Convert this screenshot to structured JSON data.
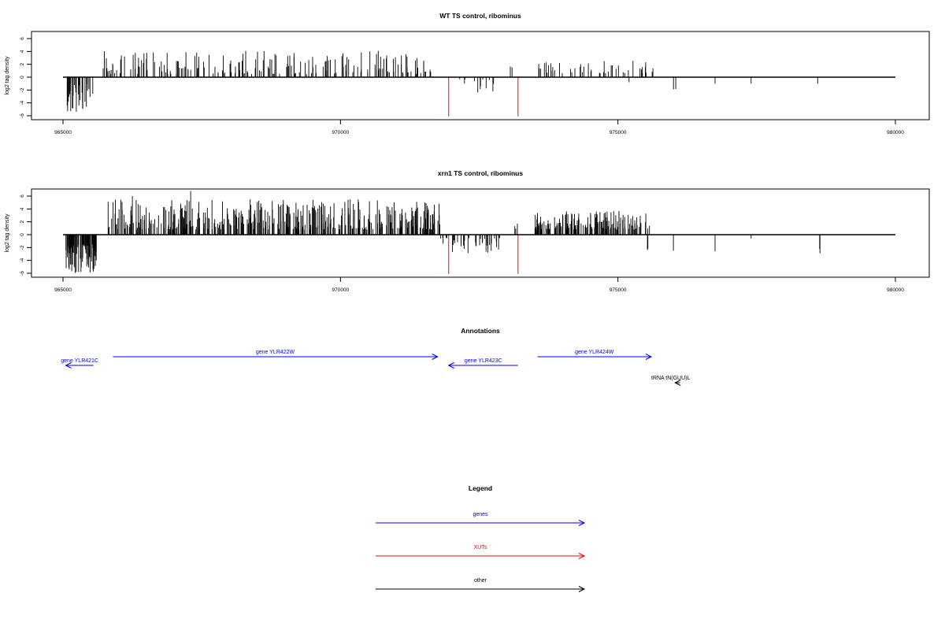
{
  "chart_data": [
    {
      "type": "bar",
      "title": "WT TS control, ribominus",
      "ylabel": "log2 tag density",
      "xlim": [
        965000,
        980000
      ],
      "ylim": [
        -6,
        6
      ],
      "xticks": [
        965000,
        970000,
        975000,
        980000
      ],
      "yticks": [
        6,
        4,
        2,
        0,
        -2,
        -4,
        -6
      ],
      "colors": {
        "other": "#000000",
        "xut": "#ff0000"
      },
      "seed": 7,
      "segments": [
        {
          "start": 965050,
          "end": 965550,
          "sign": -1,
          "density": 34,
          "min": 1,
          "max": 5.4
        },
        {
          "start": 965700,
          "end": 971650,
          "sign": 1,
          "density": 200,
          "min": 0.5,
          "max": 4.1
        },
        {
          "start": 971850,
          "end": 972800,
          "sign": -1,
          "density": 12,
          "min": 0.3,
          "max": 2.4
        },
        {
          "start": 973000,
          "end": 973150,
          "sign": 1,
          "density": 2,
          "min": 1.5,
          "max": 2.2
        },
        {
          "start": 973550,
          "end": 975650,
          "sign": 1,
          "density": 48,
          "min": 0.6,
          "max": 2.6
        },
        {
          "start": 975200,
          "end": 975250,
          "sign": -1,
          "density": 1,
          "min": 0.8,
          "max": 0.8
        },
        {
          "start": 976000,
          "end": 976050,
          "sign": -1,
          "density": 2,
          "min": 1.5,
          "max": 3.3
        },
        {
          "start": 976750,
          "end": 976800,
          "sign": -1,
          "density": 1,
          "min": 1.0,
          "max": 1.0
        },
        {
          "start": 977400,
          "end": 977450,
          "sign": -1,
          "density": 1,
          "min": 1.0,
          "max": 1.0
        },
        {
          "start": 978600,
          "end": 978650,
          "sign": -1,
          "density": 1,
          "min": 1.0,
          "max": 1.0
        }
      ],
      "xut_spikes": [
        {
          "x": 971950,
          "y": -6.1
        },
        {
          "x": 973200,
          "y": -6.1
        }
      ]
    },
    {
      "type": "bar",
      "title": "xrn1 TS control, ribominus",
      "ylabel": "log2 tag density",
      "xlim": [
        965000,
        980000
      ],
      "ylim": [
        -6,
        6
      ],
      "xticks": [
        965000,
        970000,
        975000,
        980000
      ],
      "yticks": [
        6,
        4,
        2,
        0,
        -2,
        -4,
        -6
      ],
      "colors": {
        "other": "#000000",
        "xut": "#ff0000"
      },
      "seed": 13,
      "segments": [
        {
          "start": 965050,
          "end": 965600,
          "sign": -1,
          "density": 90,
          "min": 1.5,
          "max": 6.1
        },
        {
          "start": 965800,
          "end": 971800,
          "sign": 1,
          "density": 430,
          "min": 0.8,
          "max": 5.5
        },
        {
          "start": 967300,
          "end": 967320,
          "sign": 1,
          "density": 1,
          "min": 6.8,
          "max": 6.8
        },
        {
          "start": 966250,
          "end": 966270,
          "sign": 1,
          "density": 1,
          "min": 6.0,
          "max": 6.0
        },
        {
          "start": 971800,
          "end": 972900,
          "sign": -1,
          "density": 40,
          "min": 0.5,
          "max": 2.9
        },
        {
          "start": 973100,
          "end": 973200,
          "sign": 1,
          "density": 3,
          "min": 0.8,
          "max": 2.6
        },
        {
          "start": 973500,
          "end": 975600,
          "sign": 1,
          "density": 160,
          "min": 0.8,
          "max": 3.7
        },
        {
          "start": 975500,
          "end": 975550,
          "sign": -1,
          "density": 2,
          "min": 2.0,
          "max": 2.8
        },
        {
          "start": 976000,
          "end": 976050,
          "sign": -1,
          "density": 1,
          "min": 2.5,
          "max": 2.5
        },
        {
          "start": 976750,
          "end": 976800,
          "sign": -1,
          "density": 1,
          "min": 2.6,
          "max": 2.6
        },
        {
          "start": 977400,
          "end": 977450,
          "sign": -1,
          "density": 1,
          "min": 0.6,
          "max": 0.6
        },
        {
          "start": 978600,
          "end": 978650,
          "sign": -1,
          "density": 2,
          "min": 2.0,
          "max": 3.0
        }
      ],
      "xut_spikes": [
        {
          "x": 971950,
          "y": -6.1
        },
        {
          "x": 973200,
          "y": -6.1
        }
      ]
    }
  ],
  "annotations": {
    "title": "Annotations",
    "features": [
      {
        "label": "gene YLR421C",
        "start": 965550,
        "end": 965050,
        "kind": "gene",
        "row": 2
      },
      {
        "label": "gene YLR422W",
        "start": 965900,
        "end": 971750,
        "kind": "gene",
        "row": 1
      },
      {
        "label": "gene YLR423C",
        "start": 973200,
        "end": 971950,
        "kind": "gene",
        "row": 2
      },
      {
        "label": "gene YLR424W",
        "start": 973550,
        "end": 975600,
        "kind": "gene",
        "row": 1
      },
      {
        "label": "tRNA tN(GUU)L",
        "start": 976120,
        "end": 976030,
        "kind": "other",
        "row": 3
      }
    ],
    "colors": {
      "gene": "#0000ff",
      "xut": "#ff0000",
      "other": "#000000"
    }
  },
  "legend": {
    "title": "Legend",
    "items": [
      {
        "label": "genes",
        "color": "#0000ff"
      },
      {
        "label": "XUTs",
        "color": "#ff0000"
      },
      {
        "label": "other",
        "color": "#000000"
      }
    ]
  }
}
